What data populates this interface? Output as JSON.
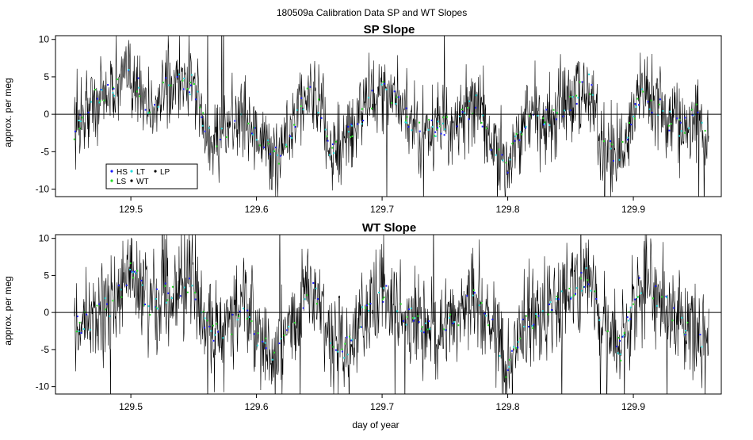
{
  "figure_title": "180509a   Calibration Data SP and WT Slopes",
  "legend": {
    "entries": [
      {
        "label": "HS",
        "color": "#1a1aff"
      },
      {
        "label": "LS",
        "color": "#22dd22"
      },
      {
        "label": "LT",
        "color": "#22dddd"
      },
      {
        "label": "WT",
        "color": "#000000"
      },
      {
        "label": "LP",
        "color": "#000000"
      }
    ]
  },
  "xlabel_bottom": "day of year",
  "chart_data": [
    {
      "type": "line",
      "title": "SP Slope",
      "xlabel": "",
      "ylabel": "approx. per meg",
      "xlim": [
        129.44,
        129.97
      ],
      "ylim": [
        -11,
        10.5
      ],
      "xticks": [
        129.5,
        129.6,
        129.7,
        129.8,
        129.9
      ],
      "xtick_labels": [
        "129.5",
        "129.6",
        "129.7",
        "129.8",
        "129.9"
      ],
      "yticks": [
        -10,
        -5,
        0,
        5,
        10
      ],
      "ytick_labels": [
        "-10",
        "-5",
        "0",
        "5",
        "10"
      ],
      "hline": 0,
      "x_range": [
        129.455,
        129.96
      ],
      "trend": {
        "x": [
          129.455,
          129.47,
          129.49,
          129.5,
          129.515,
          129.53,
          129.55,
          129.56,
          129.575,
          129.59,
          129.6,
          129.615,
          129.625,
          129.64,
          129.65,
          129.66,
          129.67,
          129.69,
          129.7,
          129.715,
          129.73,
          129.745,
          129.76,
          129.775,
          129.79,
          129.8,
          129.815,
          129.83,
          129.85,
          129.865,
          129.875,
          129.89,
          129.905,
          129.92,
          129.935,
          129.95,
          129.96
        ],
        "y": [
          -2,
          2,
          4,
          6,
          0,
          4,
          4,
          -3,
          -3,
          1,
          -3,
          -6,
          -3,
          3,
          1,
          -5,
          -4,
          2,
          3,
          1,
          -2,
          -2,
          -1,
          2,
          -5,
          -7,
          0,
          -1,
          2,
          4,
          -4,
          -6,
          3,
          1,
          -2,
          0,
          -3
        ]
      }
    },
    {
      "type": "line",
      "title": "WT Slope",
      "xlabel": "day of year",
      "ylabel": "approx. per meg",
      "xlim": [
        129.44,
        129.97
      ],
      "ylim": [
        -11,
        10.5
      ],
      "xticks": [
        129.5,
        129.6,
        129.7,
        129.8,
        129.9
      ],
      "xtick_labels": [
        "129.5",
        "129.6",
        "129.7",
        "129.8",
        "129.9"
      ],
      "yticks": [
        -10,
        -5,
        0,
        5,
        10
      ],
      "ytick_labels": [
        "-10",
        "-5",
        "0",
        "5",
        "10"
      ],
      "hline": 0,
      "x_range": [
        129.455,
        129.96
      ],
      "trend": {
        "x": [
          129.455,
          129.47,
          129.49,
          129.5,
          129.515,
          129.53,
          129.55,
          129.56,
          129.575,
          129.59,
          129.6,
          129.615,
          129.625,
          129.64,
          129.65,
          129.66,
          129.67,
          129.69,
          129.7,
          129.715,
          129.73,
          129.745,
          129.76,
          129.775,
          129.79,
          129.8,
          129.815,
          129.83,
          129.85,
          129.865,
          129.875,
          129.89,
          129.905,
          129.92,
          129.935,
          129.95,
          129.96
        ],
        "y": [
          -2,
          -1,
          2,
          6,
          1,
          3,
          4,
          -2,
          -3,
          1,
          -3,
          -6,
          -3,
          3,
          2,
          -4,
          -5,
          1,
          3,
          0,
          -1,
          -3,
          -1,
          3,
          -3,
          -8,
          -1,
          0,
          3,
          5,
          -2,
          -5,
          4,
          2,
          -1,
          -3,
          -4
        ]
      }
    }
  ]
}
